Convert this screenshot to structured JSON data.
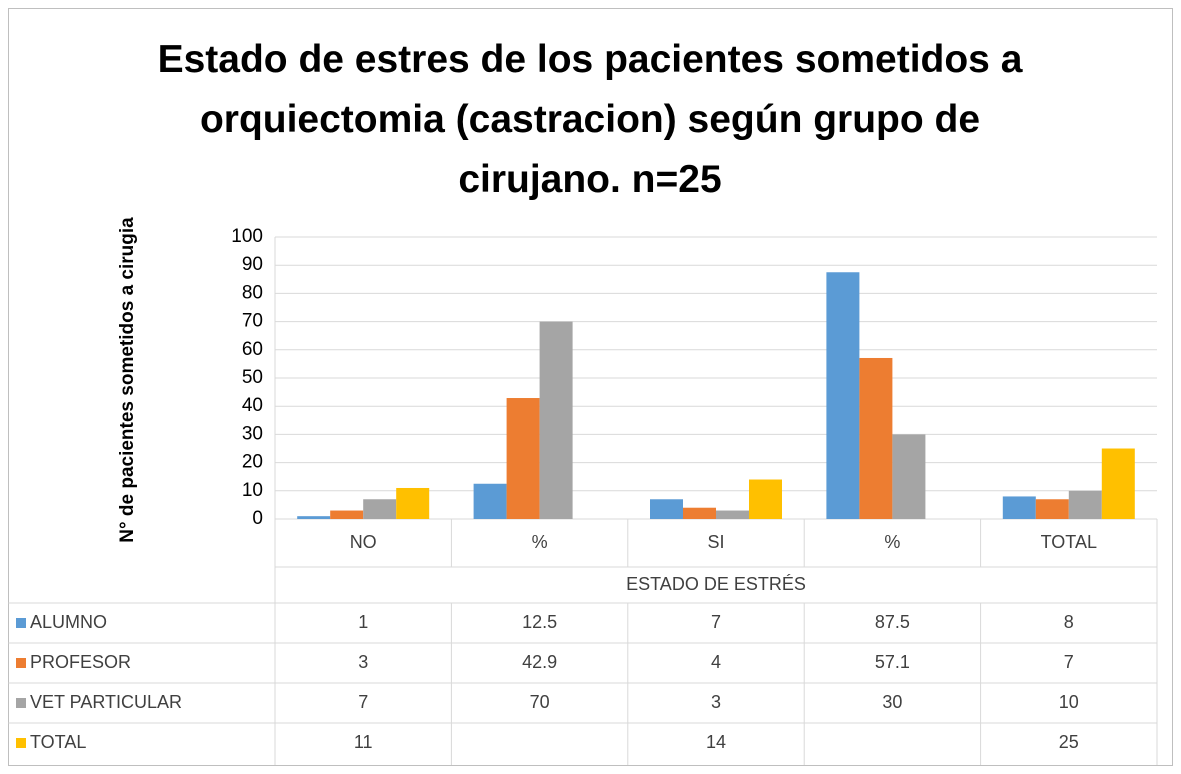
{
  "chart_data": {
    "type": "bar",
    "title": "Estado de estres de los pacientes sometidos a orquiectomia (castracion) según grupo de cirujano. n=25",
    "x_label": "ESTADO DE ESTRÉS",
    "y_label": "N° de pacientes sometidos a cirugia",
    "categories": [
      "NO",
      "%",
      "SI",
      "%",
      "TOTAL"
    ],
    "series": [
      {
        "name": "ALUMNO",
        "color": "#5b9bd5",
        "values": [
          1,
          12.5,
          7,
          87.5,
          8
        ]
      },
      {
        "name": "PROFESOR",
        "color": "#ed7d31",
        "values": [
          3,
          42.9,
          4,
          57.1,
          7
        ]
      },
      {
        "name": "VET PARTICULAR",
        "color": "#a5a5a5",
        "values": [
          7,
          70,
          3,
          30,
          10
        ]
      },
      {
        "name": "TOTAL",
        "color": "#ffc000",
        "values": [
          11,
          null,
          14,
          null,
          25
        ]
      }
    ],
    "ylim": [
      0,
      100
    ],
    "yticks": [
      0,
      10,
      20,
      30,
      40,
      50,
      60,
      70,
      80,
      90,
      100
    ],
    "grid": true,
    "data_table": true
  }
}
